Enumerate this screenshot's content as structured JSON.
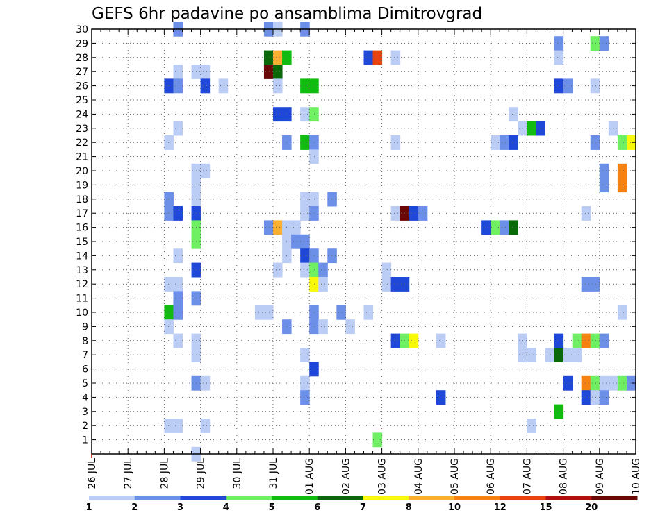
{
  "chart_data": {
    "type": "heatmap",
    "title": "GEFS 6hr padavine po ansamblima Dimitrovgrad",
    "x_tick_labels": [
      "26 JUL",
      "27 JUL",
      "28 JUL",
      "29 JUL",
      "30 JUL",
      "31 JUL",
      "01 AUG",
      "02 AUG",
      "03 AUG",
      "04 AUG",
      "05 AUG",
      "06 AUG",
      "07 AUG",
      "08 AUG",
      "09 AUG",
      "10 AUG"
    ],
    "y_tick_labels": [
      "1",
      "2",
      "3",
      "4",
      "5",
      "6",
      "7",
      "8",
      "9",
      "10",
      "11",
      "12",
      "13",
      "14",
      "15",
      "16",
      "17",
      "18",
      "19",
      "20",
      "21",
      "22",
      "23",
      "24",
      "25",
      "26",
      "27",
      "28",
      "29",
      "30"
    ],
    "x_range_days": [
      0,
      15
    ],
    "y_range": [
      0,
      30
    ],
    "time_step_hours": 6,
    "grid": true,
    "legend": {
      "placement": "bottom",
      "colors": [
        "#bccdf5",
        "#6c8fe8",
        "#1f48d9",
        "#6ff062",
        "#12bb0f",
        "#096909",
        "#f8f80a",
        "#faaf30",
        "#f58212",
        "#e8420e",
        "#b01010",
        "#6a0808"
      ],
      "labels": [
        "1",
        "2",
        "3",
        "4",
        "5",
        "6",
        "7",
        "8",
        "10",
        "12",
        "15",
        "20"
      ]
    },
    "cells": [
      [
        2.25,
        30,
        1
      ],
      [
        4.75,
        30,
        1
      ],
      [
        5,
        30,
        0
      ],
      [
        5.75,
        30,
        1
      ],
      [
        12.75,
        29,
        1
      ],
      [
        13.75,
        29,
        3
      ],
      [
        14,
        29,
        1
      ],
      [
        4.75,
        28,
        5
      ],
      [
        5,
        28,
        7
      ],
      [
        5.25,
        28,
        4
      ],
      [
        7.5,
        28,
        2
      ],
      [
        7.75,
        28,
        9
      ],
      [
        8.25,
        28,
        0
      ],
      [
        12.75,
        28,
        0
      ],
      [
        2.25,
        27,
        0
      ],
      [
        2.75,
        27,
        0
      ],
      [
        3,
        27,
        0
      ],
      [
        4.75,
        27,
        11
      ],
      [
        5,
        27,
        5
      ],
      [
        2,
        26,
        2
      ],
      [
        2.25,
        26,
        1
      ],
      [
        3,
        26,
        2
      ],
      [
        3.5,
        26,
        0
      ],
      [
        5,
        26,
        0
      ],
      [
        5.75,
        26,
        4
      ],
      [
        6,
        26,
        4
      ],
      [
        12.75,
        26,
        2
      ],
      [
        13,
        26,
        1
      ],
      [
        13.75,
        26,
        0
      ],
      [
        5,
        24,
        2
      ],
      [
        5.25,
        24,
        2
      ],
      [
        5.75,
        24,
        0
      ],
      [
        6,
        24,
        3
      ],
      [
        11.5,
        24,
        0
      ],
      [
        2.25,
        23,
        0
      ],
      [
        11.75,
        23,
        0
      ],
      [
        12,
        23,
        4
      ],
      [
        12.25,
        23,
        2
      ],
      [
        14.25,
        23,
        0
      ],
      [
        2,
        22,
        0
      ],
      [
        5.25,
        22,
        1
      ],
      [
        5.75,
        22,
        4
      ],
      [
        6,
        22,
        1
      ],
      [
        8.25,
        22,
        0
      ],
      [
        11,
        22,
        0
      ],
      [
        11.25,
        22,
        1
      ],
      [
        11.5,
        22,
        2
      ],
      [
        13.75,
        22,
        1
      ],
      [
        14.5,
        22,
        3
      ],
      [
        14.75,
        22,
        6
      ],
      [
        6,
        21,
        0
      ],
      [
        2.75,
        20,
        0
      ],
      [
        3,
        20,
        0
      ],
      [
        14,
        20,
        1
      ],
      [
        14.5,
        20,
        8
      ],
      [
        2.75,
        19,
        0
      ],
      [
        14,
        19,
        1
      ],
      [
        14.5,
        19,
        8
      ],
      [
        2.75,
        18,
        0
      ],
      [
        2,
        18,
        1
      ],
      [
        5.75,
        18,
        0
      ],
      [
        6,
        18,
        0
      ],
      [
        6.5,
        18,
        1
      ],
      [
        2,
        17,
        1
      ],
      [
        2.25,
        17,
        2
      ],
      [
        2.75,
        17,
        2
      ],
      [
        5.75,
        17,
        0
      ],
      [
        6,
        17,
        1
      ],
      [
        8.25,
        17,
        0
      ],
      [
        8.5,
        17,
        11
      ],
      [
        8.75,
        17,
        2
      ],
      [
        9,
        17,
        1
      ],
      [
        13.5,
        17,
        0
      ],
      [
        2.75,
        16,
        3
      ],
      [
        4.75,
        16,
        1
      ],
      [
        5,
        16,
        7
      ],
      [
        5.25,
        16,
        0
      ],
      [
        5.5,
        16,
        0
      ],
      [
        10.75,
        16,
        2
      ],
      [
        11,
        16,
        3
      ],
      [
        11.25,
        16,
        1
      ],
      [
        11.5,
        16,
        5
      ],
      [
        2.75,
        15,
        3
      ],
      [
        5.25,
        15,
        0
      ],
      [
        5.5,
        15,
        1
      ],
      [
        5.75,
        15,
        1
      ],
      [
        2.25,
        14,
        0
      ],
      [
        5.25,
        14,
        0
      ],
      [
        5.75,
        14,
        2
      ],
      [
        6,
        14,
        1
      ],
      [
        6.5,
        14,
        1
      ],
      [
        2.75,
        13,
        2
      ],
      [
        5,
        13,
        0
      ],
      [
        5.75,
        13,
        0
      ],
      [
        6,
        13,
        3
      ],
      [
        6.25,
        13,
        1
      ],
      [
        8,
        13,
        0
      ],
      [
        2,
        12,
        0
      ],
      [
        2.25,
        12,
        0
      ],
      [
        6,
        12,
        6
      ],
      [
        6.25,
        12,
        0
      ],
      [
        8,
        12,
        0
      ],
      [
        8.25,
        12,
        2
      ],
      [
        8.5,
        12,
        2
      ],
      [
        13.5,
        12,
        1
      ],
      [
        13.75,
        12,
        1
      ],
      [
        2.25,
        11,
        1
      ],
      [
        2.75,
        11,
        1
      ],
      [
        2,
        10,
        4
      ],
      [
        2.25,
        10,
        1
      ],
      [
        4.5,
        10,
        0
      ],
      [
        4.75,
        10,
        0
      ],
      [
        6,
        10,
        1
      ],
      [
        6.75,
        10,
        1
      ],
      [
        7.5,
        10,
        0
      ],
      [
        14.5,
        10,
        0
      ],
      [
        2,
        9,
        0
      ],
      [
        5.25,
        9,
        1
      ],
      [
        6,
        9,
        1
      ],
      [
        6.25,
        9,
        0
      ],
      [
        7,
        9,
        0
      ],
      [
        2.25,
        8,
        0
      ],
      [
        2.75,
        8,
        0
      ],
      [
        8.25,
        8,
        2
      ],
      [
        8.5,
        8,
        3
      ],
      [
        8.75,
        8,
        6
      ],
      [
        9.5,
        8,
        0
      ],
      [
        11.75,
        8,
        0
      ],
      [
        12.75,
        8,
        2
      ],
      [
        13.25,
        8,
        3
      ],
      [
        13.5,
        8,
        8
      ],
      [
        13.75,
        8,
        3
      ],
      [
        14,
        8,
        1
      ],
      [
        2.75,
        7,
        0
      ],
      [
        5.75,
        7,
        0
      ],
      [
        11.75,
        7,
        0
      ],
      [
        12,
        7,
        0
      ],
      [
        12.5,
        7,
        0
      ],
      [
        12.75,
        7,
        5
      ],
      [
        13,
        7,
        0
      ],
      [
        13.25,
        7,
        0
      ],
      [
        6,
        6,
        2
      ],
      [
        2.75,
        5,
        1
      ],
      [
        3,
        5,
        0
      ],
      [
        5.75,
        5,
        0
      ],
      [
        13,
        5,
        2
      ],
      [
        13.5,
        5,
        8
      ],
      [
        13.75,
        5,
        3
      ],
      [
        14,
        5,
        0
      ],
      [
        14.25,
        5,
        0
      ],
      [
        14.5,
        5,
        3
      ],
      [
        14.75,
        5,
        1
      ],
      [
        5.75,
        4,
        1
      ],
      [
        9.5,
        4,
        2
      ],
      [
        13.5,
        4,
        2
      ],
      [
        13.75,
        4,
        0
      ],
      [
        14,
        4,
        1
      ],
      [
        12.75,
        3,
        4
      ],
      [
        2,
        2,
        0
      ],
      [
        2.25,
        2,
        0
      ],
      [
        3,
        2,
        0
      ],
      [
        12,
        2,
        0
      ],
      [
        7.75,
        1,
        3
      ],
      [
        2.75,
        0,
        0
      ]
    ]
  }
}
